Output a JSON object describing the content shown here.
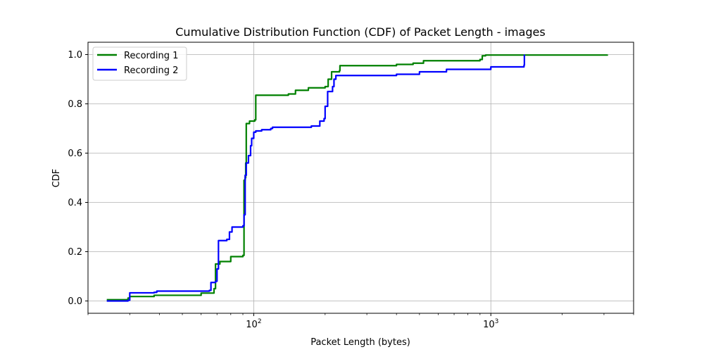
{
  "chart_data": {
    "type": "line",
    "title": "Cumulative Distribution Function (CDF) of Packet Length - images",
    "xlabel": "Packet Length (bytes)",
    "ylabel": "CDF",
    "xscale": "log",
    "xlim": [
      20,
      4000
    ],
    "ylim": [
      -0.05,
      1.05
    ],
    "xticks": [
      {
        "value": 100,
        "base": "10",
        "exp": "2"
      },
      {
        "value": 1000,
        "base": "10",
        "exp": "3"
      }
    ],
    "yticks": [
      {
        "value": 0.0,
        "label": "0.0"
      },
      {
        "value": 0.2,
        "label": "0.2"
      },
      {
        "value": 0.4,
        "label": "0.4"
      },
      {
        "value": 0.6,
        "label": "0.6"
      },
      {
        "value": 0.8,
        "label": "0.8"
      },
      {
        "value": 1.0,
        "label": "1.0"
      }
    ],
    "grid": true,
    "legend_position": "top-left",
    "series": [
      {
        "name": "Recording 1",
        "color": "#008000",
        "points": [
          [
            24,
            0.005
          ],
          [
            29.5,
            0.012
          ],
          [
            30,
            0.018
          ],
          [
            38,
            0.023
          ],
          [
            60,
            0.032
          ],
          [
            68,
            0.05
          ],
          [
            69,
            0.15
          ],
          [
            72,
            0.16
          ],
          [
            80,
            0.18
          ],
          [
            90,
            0.185
          ],
          [
            91,
            0.49
          ],
          [
            92,
            0.5
          ],
          [
            92.5,
            0.56
          ],
          [
            93,
            0.72
          ],
          [
            96,
            0.73
          ],
          [
            101,
            0.735
          ],
          [
            102,
            0.835
          ],
          [
            140,
            0.84
          ],
          [
            150,
            0.855
          ],
          [
            170,
            0.865
          ],
          [
            200,
            0.87
          ],
          [
            206,
            0.9
          ],
          [
            213,
            0.93
          ],
          [
            230,
            0.935
          ],
          [
            231,
            0.955
          ],
          [
            400,
            0.96
          ],
          [
            470,
            0.965
          ],
          [
            520,
            0.975
          ],
          [
            900,
            0.98
          ],
          [
            920,
            0.995
          ],
          [
            950,
            0.998
          ],
          [
            3100,
            1.0
          ]
        ]
      },
      {
        "name": "Recording 2",
        "color": "#0000ff",
        "points": [
          [
            24,
            0.0
          ],
          [
            29.5,
            0.003
          ],
          [
            30,
            0.033
          ],
          [
            38,
            0.035
          ],
          [
            39,
            0.04
          ],
          [
            65,
            0.043
          ],
          [
            66,
            0.075
          ],
          [
            69,
            0.08
          ],
          [
            70,
            0.13
          ],
          [
            71,
            0.245
          ],
          [
            77,
            0.25
          ],
          [
            79,
            0.28
          ],
          [
            81,
            0.3
          ],
          [
            90,
            0.305
          ],
          [
            91,
            0.35
          ],
          [
            92,
            0.51
          ],
          [
            93,
            0.56
          ],
          [
            95,
            0.59
          ],
          [
            97,
            0.63
          ],
          [
            98,
            0.66
          ],
          [
            100,
            0.685
          ],
          [
            102,
            0.69
          ],
          [
            108,
            0.695
          ],
          [
            118,
            0.7
          ],
          [
            120,
            0.705
          ],
          [
            175,
            0.71
          ],
          [
            190,
            0.73
          ],
          [
            198,
            0.74
          ],
          [
            200,
            0.79
          ],
          [
            205,
            0.85
          ],
          [
            215,
            0.87
          ],
          [
            218,
            0.9
          ],
          [
            222,
            0.915
          ],
          [
            400,
            0.92
          ],
          [
            500,
            0.93
          ],
          [
            650,
            0.94
          ],
          [
            1000,
            0.95
          ],
          [
            1380,
            0.957
          ],
          [
            1385,
            1.0
          ]
        ]
      }
    ]
  }
}
